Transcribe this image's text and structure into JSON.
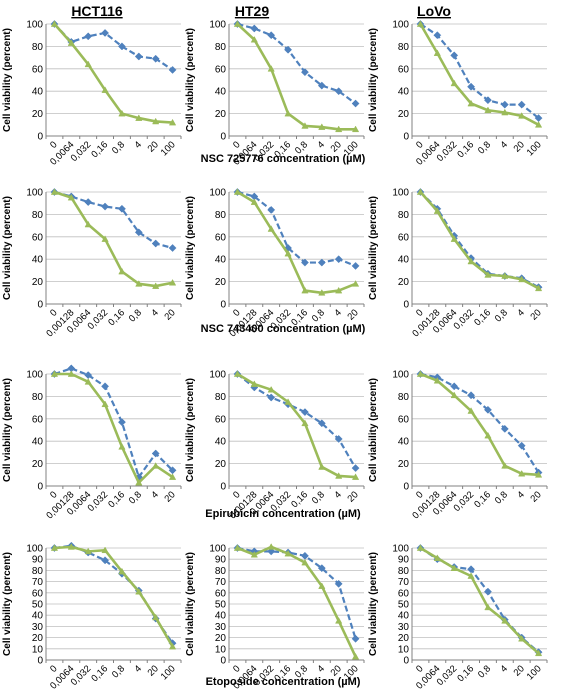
{
  "colors": {
    "series_a": "#4F81BD",
    "series_b": "#9BBB59",
    "grid": "#BFBFBF",
    "axis": "#808080",
    "text": "#000000"
  },
  "figure": {
    "ylabel": "Cell viability (percent)",
    "columns": [
      "HCT116",
      "HT29",
      "LoVo"
    ],
    "row_xlabels": [
      "NSC 725776 concentration (µM)",
      "NSC 743400 concentration (µM)",
      "Epirubicin concentration (µM)",
      "Etoposide concentration (µM)"
    ]
  },
  "chart_data": [
    {
      "type": "line",
      "cell_line": "HCT116",
      "drug": "NSC 725776",
      "xlabel": "NSC 725776 concentration (µM)",
      "categories": [
        "0",
        "0,0064",
        "0,032",
        "0,16",
        "0,8",
        "4",
        "20",
        "100"
      ],
      "ylim": [
        0,
        100
      ],
      "yticks": [
        0,
        20,
        40,
        60,
        80,
        100
      ],
      "grid": true,
      "series": [
        {
          "style": "dashed-diamond",
          "values": [
            100,
            84,
            89,
            92,
            80,
            71,
            69,
            59
          ]
        },
        {
          "style": "solid-triangle",
          "values": [
            100,
            83,
            64,
            41,
            20,
            16,
            13,
            12
          ]
        }
      ]
    },
    {
      "type": "line",
      "cell_line": "HT29",
      "drug": "NSC 725776",
      "xlabel": "NSC 725776 concentration (µM)",
      "categories": [
        "0",
        "0,0064",
        "0,032",
        "0,16",
        "0,8",
        "4",
        "20",
        "100"
      ],
      "ylim": [
        0,
        100
      ],
      "yticks": [
        0,
        20,
        40,
        60,
        80,
        100
      ],
      "grid": true,
      "series": [
        {
          "style": "dashed-diamond",
          "values": [
            100,
            96,
            90,
            77,
            57,
            45,
            40,
            29
          ]
        },
        {
          "style": "solid-triangle",
          "values": [
            100,
            86,
            60,
            20,
            9,
            8,
            6,
            6
          ]
        }
      ]
    },
    {
      "type": "line",
      "cell_line": "LoVo",
      "drug": "NSC 725776",
      "xlabel": "NSC 725776 concentration (µM)",
      "categories": [
        "0",
        "0,0064",
        "0,032",
        "0,16",
        "0,8",
        "4",
        "20",
        "100"
      ],
      "ylim": [
        0,
        100
      ],
      "yticks": [
        0,
        20,
        40,
        60,
        80,
        100
      ],
      "grid": true,
      "series": [
        {
          "style": "dashed-diamond",
          "values": [
            100,
            90,
            72,
            44,
            32,
            28,
            28,
            16
          ]
        },
        {
          "style": "solid-triangle",
          "values": [
            100,
            74,
            47,
            29,
            23,
            21,
            18,
            10
          ]
        }
      ]
    },
    {
      "type": "line",
      "cell_line": "HCT116",
      "drug": "NSC 743400",
      "xlabel": "NSC 743400 concentration (µM)",
      "categories": [
        "0",
        "0,00128",
        "0,0064",
        "0,032",
        "0,16",
        "0,8",
        "4",
        "20"
      ],
      "ylim": [
        0,
        100
      ],
      "yticks": [
        0,
        20,
        40,
        60,
        80,
        100
      ],
      "grid": true,
      "series": [
        {
          "style": "dashed-diamond",
          "values": [
            100,
            96,
            91,
            87,
            85,
            64,
            54,
            50
          ]
        },
        {
          "style": "solid-triangle",
          "values": [
            100,
            95,
            71,
            58,
            29,
            18,
            16,
            19
          ]
        }
      ]
    },
    {
      "type": "line",
      "cell_line": "HT29",
      "drug": "NSC 743400",
      "xlabel": "NSC 743400 concentration (µM)",
      "categories": [
        "0",
        "0,00128",
        "0,0064",
        "0,032",
        "0,16",
        "0,8",
        "4",
        "20"
      ],
      "ylim": [
        0,
        100
      ],
      "yticks": [
        0,
        20,
        40,
        60,
        80,
        100
      ],
      "grid": true,
      "series": [
        {
          "style": "dashed-diamond",
          "values": [
            100,
            96,
            84,
            50,
            37,
            37,
            40,
            34
          ]
        },
        {
          "style": "solid-triangle",
          "values": [
            100,
            91,
            67,
            45,
            12,
            10,
            12,
            18
          ]
        }
      ]
    },
    {
      "type": "line",
      "cell_line": "LoVo",
      "drug": "NSC 743400",
      "xlabel": "NSC 743400 concentration (µM)",
      "categories": [
        "0",
        "0,00128",
        "0,0064",
        "0,032",
        "0,16",
        "0,8",
        "4",
        "20"
      ],
      "ylim": [
        0,
        100
      ],
      "yticks": [
        0,
        20,
        40,
        60,
        80,
        100
      ],
      "grid": true,
      "series": [
        {
          "style": "dashed-diamond",
          "values": [
            100,
            85,
            61,
            41,
            27,
            25,
            23,
            15
          ]
        },
        {
          "style": "solid-triangle",
          "values": [
            100,
            83,
            58,
            38,
            26,
            25,
            22,
            14
          ]
        }
      ]
    },
    {
      "type": "line",
      "cell_line": "HCT116",
      "drug": "Epirubicin",
      "xlabel": "Epirubicin concentration (µM)",
      "categories": [
        "0",
        "0,00128",
        "0,0064",
        "0,032",
        "0,16",
        "0,8",
        "4",
        "20"
      ],
      "ylim": [
        0,
        100
      ],
      "yticks": [
        0,
        20,
        40,
        60,
        80,
        100
      ],
      "grid": true,
      "series": [
        {
          "style": "dashed-diamond",
          "values": [
            100,
            105,
            99,
            89,
            57,
            8,
            29,
            14
          ]
        },
        {
          "style": "solid-triangle",
          "values": [
            100,
            100,
            93,
            73,
            35,
            3,
            18,
            8
          ]
        }
      ]
    },
    {
      "type": "line",
      "cell_line": "HT29",
      "drug": "Epirubicin",
      "xlabel": "Epirubicin concentration (µM)",
      "categories": [
        "0",
        "0,00128",
        "0,0064",
        "0,032",
        "0,16",
        "0,8",
        "4",
        "20"
      ],
      "ylim": [
        0,
        100
      ],
      "yticks": [
        0,
        20,
        40,
        60,
        80,
        100
      ],
      "grid": true,
      "series": [
        {
          "style": "dashed-diamond",
          "values": [
            100,
            88,
            79,
            73,
            66,
            56,
            42,
            16
          ]
        },
        {
          "style": "solid-triangle",
          "values": [
            100,
            91,
            86,
            75,
            56,
            17,
            9,
            8
          ]
        }
      ]
    },
    {
      "type": "line",
      "cell_line": "LoVo",
      "drug": "Epirubicin",
      "xlabel": "Epirubicin concentration (µM)",
      "categories": [
        "0",
        "0,00128",
        "0,0064",
        "0,032",
        "0,16",
        "0,8",
        "4",
        "20"
      ],
      "ylim": [
        0,
        100
      ],
      "yticks": [
        0,
        20,
        40,
        60,
        80,
        100
      ],
      "grid": true,
      "series": [
        {
          "style": "dashed-diamond",
          "values": [
            100,
            97,
            89,
            81,
            68,
            51,
            36,
            12
          ]
        },
        {
          "style": "solid-triangle",
          "values": [
            100,
            94,
            81,
            67,
            45,
            18,
            11,
            10
          ]
        }
      ]
    },
    {
      "type": "line",
      "cell_line": "HCT116",
      "drug": "Etoposide",
      "xlabel": "Etoposide concentration (µM)",
      "categories": [
        "0",
        "0,0064",
        "0,032",
        "0,16",
        "0,8",
        "4",
        "20",
        "100"
      ],
      "ylim": [
        0,
        100
      ],
      "yticks": [
        0,
        10,
        20,
        30,
        40,
        50,
        60,
        70,
        80,
        90,
        100
      ],
      "grid": true,
      "series": [
        {
          "style": "dashed-diamond",
          "values": [
            100,
            102,
            96,
            89,
            77,
            62,
            37,
            15
          ]
        },
        {
          "style": "solid-triangle",
          "values": [
            100,
            101,
            97,
            98,
            79,
            61,
            38,
            12
          ]
        }
      ]
    },
    {
      "type": "line",
      "cell_line": "HT29",
      "drug": "Etoposide",
      "xlabel": "Etoposide concentration (µM)",
      "categories": [
        "0",
        "0,0064",
        "0,032",
        "0,16",
        "0,8",
        "4",
        "20",
        "100"
      ],
      "ylim": [
        0,
        100
      ],
      "yticks": [
        0,
        10,
        20,
        30,
        40,
        50,
        60,
        70,
        80,
        90,
        100
      ],
      "grid": true,
      "series": [
        {
          "style": "dashed-diamond",
          "values": [
            100,
            97,
            97,
            96,
            93,
            82,
            68,
            19
          ]
        },
        {
          "style": "solid-triangle",
          "values": [
            100,
            94,
            101,
            95,
            87,
            66,
            35,
            3
          ]
        }
      ]
    },
    {
      "type": "line",
      "cell_line": "LoVo",
      "drug": "Etoposide",
      "xlabel": "Etoposide concentration (µM)",
      "categories": [
        "0",
        "0,0064",
        "0,032",
        "0,16",
        "0,8",
        "4",
        "20",
        "100"
      ],
      "ylim": [
        0,
        100
      ],
      "yticks": [
        0,
        10,
        20,
        30,
        40,
        50,
        60,
        70,
        80,
        90,
        100
      ],
      "grid": true,
      "series": [
        {
          "style": "dashed-diamond",
          "values": [
            100,
            90,
            83,
            81,
            61,
            36,
            20,
            7
          ]
        },
        {
          "style": "solid-triangle",
          "values": [
            100,
            91,
            82,
            75,
            47,
            35,
            19,
            6
          ]
        }
      ]
    }
  ]
}
